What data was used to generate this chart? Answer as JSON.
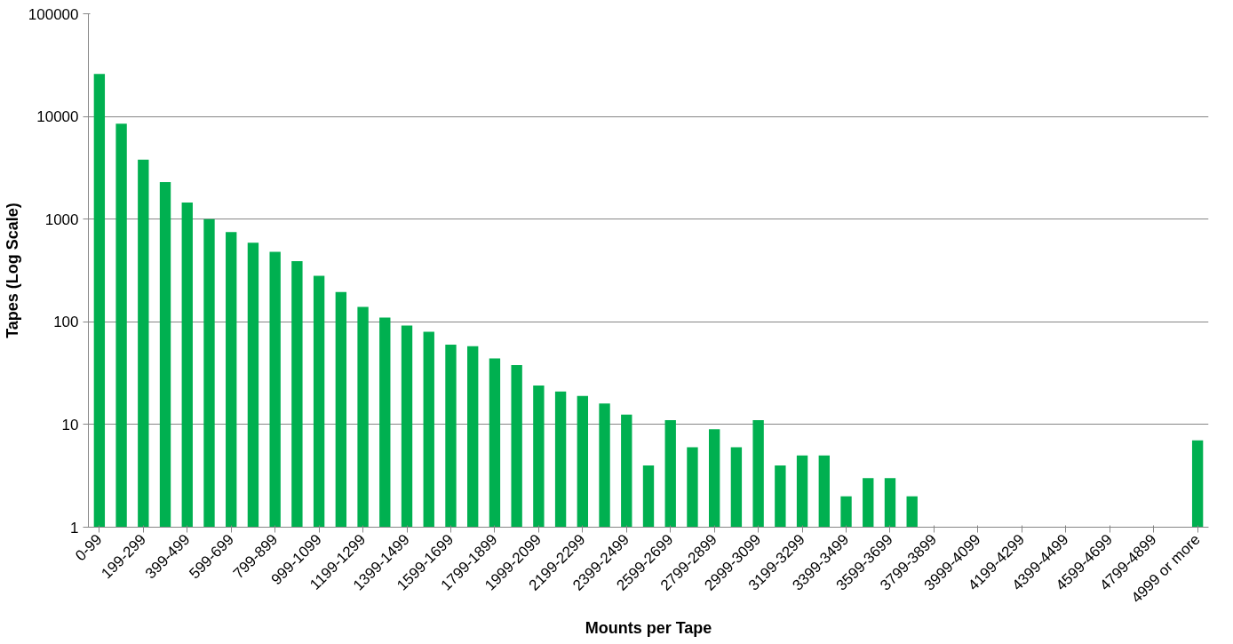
{
  "chart_data": {
    "type": "bar",
    "xlabel": "Mounts per Tape",
    "ylabel": "Tapes (Log Scale)",
    "log": "y",
    "grid": "y",
    "categories": [
      "0-99",
      null,
      "199-299",
      null,
      "399-499",
      null,
      "599-699",
      null,
      "799-899",
      null,
      "999-1099",
      null,
      "1199-1299",
      null,
      "1399-1499",
      null,
      "1599-1699",
      null,
      "1799-1899",
      null,
      "1999-2099",
      null,
      "2199-2299",
      null,
      "2399-2499",
      null,
      "2599-2699",
      null,
      "2799-2899",
      null,
      "2999-3099",
      null,
      "3199-3299",
      null,
      "3399-3499",
      null,
      "3599-3699",
      null,
      "3799-3899",
      null,
      "3999-4099",
      null,
      "4199-4299",
      null,
      "4399-4499",
      null,
      "4599-4699",
      null,
      "4799-4899",
      null,
      "4999 or more"
    ],
    "series": [
      {
        "color": "#00b050",
        "values": [
          26000,
          8500,
          3800,
          2300,
          1450,
          1000,
          750,
          590,
          480,
          390,
          280,
          195,
          140,
          110,
          92,
          80,
          60,
          58,
          44,
          38,
          24,
          21,
          19,
          16,
          12.5,
          4,
          11,
          6,
          9,
          6,
          11,
          4,
          5,
          5,
          2,
          3,
          3,
          2,
          null,
          null,
          null,
          null,
          null,
          null,
          null,
          null,
          null,
          null,
          null,
          null,
          7
        ]
      }
    ],
    "ylim": [
      1,
      100000
    ],
    "yticks": [
      1,
      10,
      100,
      1000,
      10000,
      100000
    ]
  }
}
